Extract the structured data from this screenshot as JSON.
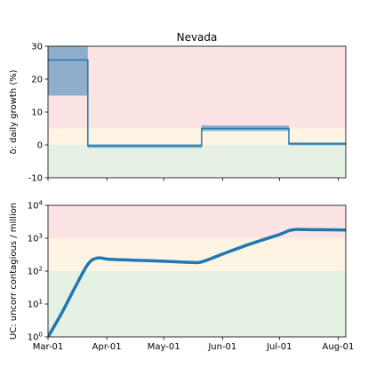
{
  "chart_data": [
    {
      "type": "line",
      "title": "Nevada",
      "ylabel": "δ: daily growth (%)",
      "ylim": [
        -10,
        30
      ],
      "yticks": [
        -10,
        0,
        10,
        20,
        30
      ],
      "xlim": [
        "2020-03-01",
        "2020-08-05"
      ],
      "zones": [
        {
          "range": [
            5,
            30
          ],
          "color": "#fde4e4"
        },
        {
          "range": [
            0,
            5
          ],
          "color": "#fdf4e3"
        },
        {
          "range": [
            -10,
            0
          ],
          "color": "#e5f1e3"
        }
      ],
      "series": [
        {
          "step": true,
          "segments": [
            {
              "start": "2020-03-01",
              "end": "2020-03-22",
              "value": 25.8,
              "ci": [
                15,
                30
              ]
            },
            {
              "start": "2020-03-22",
              "end": "2020-05-21",
              "value": -0.3,
              "ci": [
                -0.9,
                0.2
              ]
            },
            {
              "start": "2020-05-21",
              "end": "2020-07-06",
              "value": 5.0,
              "ci": [
                4.2,
                5.9
              ]
            },
            {
              "start": "2020-07-06",
              "end": "2020-08-05",
              "value": 0.3,
              "ci": [
                -0.1,
                0.8
              ]
            }
          ],
          "color": "#1f77b4"
        }
      ]
    },
    {
      "type": "line",
      "ylabel": "UC: uncorr contagious / million",
      "yscale": "log",
      "ylim": [
        1,
        10000
      ],
      "yticks": [
        {
          "value": 1,
          "base": "10",
          "exp": "0"
        },
        {
          "value": 10,
          "base": "10",
          "exp": "1"
        },
        {
          "value": 100,
          "base": "10",
          "exp": "2"
        },
        {
          "value": 1000,
          "base": "10",
          "exp": "3"
        },
        {
          "value": 10000,
          "base": "10",
          "exp": "4"
        }
      ],
      "xlim": [
        "2020-03-01",
        "2020-08-05"
      ],
      "xticks": [
        {
          "date": "2020-03-01",
          "label": "Mar-01"
        },
        {
          "date": "2020-04-01",
          "label": "Apr-01"
        },
        {
          "date": "2020-05-01",
          "label": "May-01"
        },
        {
          "date": "2020-06-01",
          "label": "Jun-01"
        },
        {
          "date": "2020-07-01",
          "label": "Jul-01"
        },
        {
          "date": "2020-08-01",
          "label": "Aug-01"
        }
      ],
      "zones": [
        {
          "range": [
            1000,
            10000
          ],
          "color": "#fde4e4"
        },
        {
          "range": [
            100,
            1000
          ],
          "color": "#fdf4e3"
        },
        {
          "range": [
            1,
            100
          ],
          "color": "#e5f1e3"
        }
      ],
      "series": [
        {
          "color": "#1f77b4",
          "points": [
            [
              "2020-03-01",
              1
            ],
            [
              "2020-03-08",
              5
            ],
            [
              "2020-03-15",
              30
            ],
            [
              "2020-03-22",
              160
            ],
            [
              "2020-03-27",
              250
            ],
            [
              "2020-04-02",
              230
            ],
            [
              "2020-04-15",
              215
            ],
            [
              "2020-05-01",
              200
            ],
            [
              "2020-05-15",
              185
            ],
            [
              "2020-05-21",
              190
            ],
            [
              "2020-06-01",
              330
            ],
            [
              "2020-06-15",
              650
            ],
            [
              "2020-07-01",
              1300
            ],
            [
              "2020-07-06",
              1700
            ],
            [
              "2020-07-10",
              1850
            ],
            [
              "2020-07-20",
              1820
            ],
            [
              "2020-08-05",
              1780
            ]
          ]
        }
      ]
    }
  ]
}
